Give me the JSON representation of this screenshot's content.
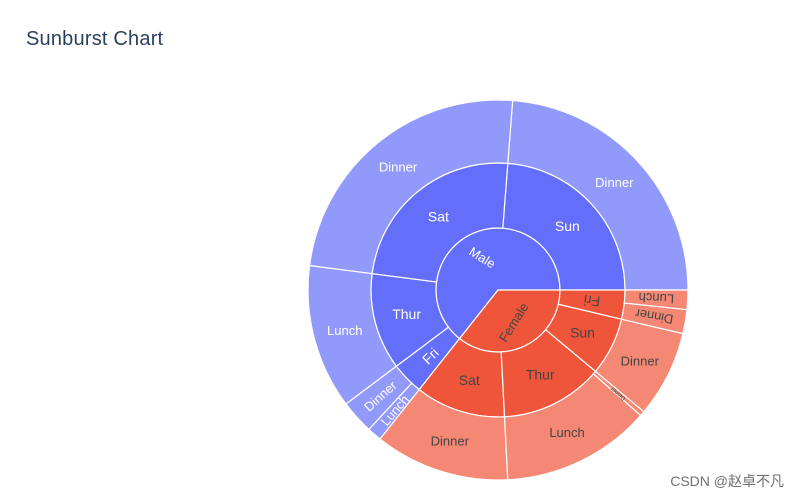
{
  "chart_data": {
    "type": "sunburst",
    "title": "Sunburst Chart",
    "palette": {
      "male": "#636efa",
      "female": "#ef553b",
      "stroke": "#ffffff",
      "text_light": "#ffffff",
      "text_dark": "#444444"
    },
    "tree": [
      {
        "label": "Male",
        "value": 157,
        "children": [
          {
            "label": "Sun",
            "value": 58,
            "children": [
              {
                "label": "Dinner",
                "value": 58
              }
            ]
          },
          {
            "label": "Sat",
            "value": 59,
            "children": [
              {
                "label": "Dinner",
                "value": 59
              }
            ]
          },
          {
            "label": "Thur",
            "value": 30,
            "children": [
              {
                "label": "Lunch",
                "value": 30
              }
            ]
          },
          {
            "label": "Fri",
            "value": 10,
            "children": [
              {
                "label": "Dinner",
                "value": 7
              },
              {
                "label": "Lunch",
                "value": 3
              }
            ]
          }
        ]
      },
      {
        "label": "Female",
        "value": 87,
        "children": [
          {
            "label": "Sat",
            "value": 28,
            "children": [
              {
                "label": "Dinner",
                "value": 28
              }
            ]
          },
          {
            "label": "Thur",
            "value": 32,
            "children": [
              {
                "label": "Lunch",
                "value": 31
              },
              {
                "label": "Dinner",
                "value": 1
              }
            ]
          },
          {
            "label": "Sun",
            "value": 18,
            "children": [
              {
                "label": "Dinner",
                "value": 18
              }
            ]
          },
          {
            "label": "Fri",
            "value": 9,
            "children": [
              {
                "label": "Dinner",
                "value": 5
              },
              {
                "label": "Lunch",
                "value": 4
              }
            ]
          }
        ]
      }
    ]
  },
  "watermark": "CSDN @赵卓不凡"
}
